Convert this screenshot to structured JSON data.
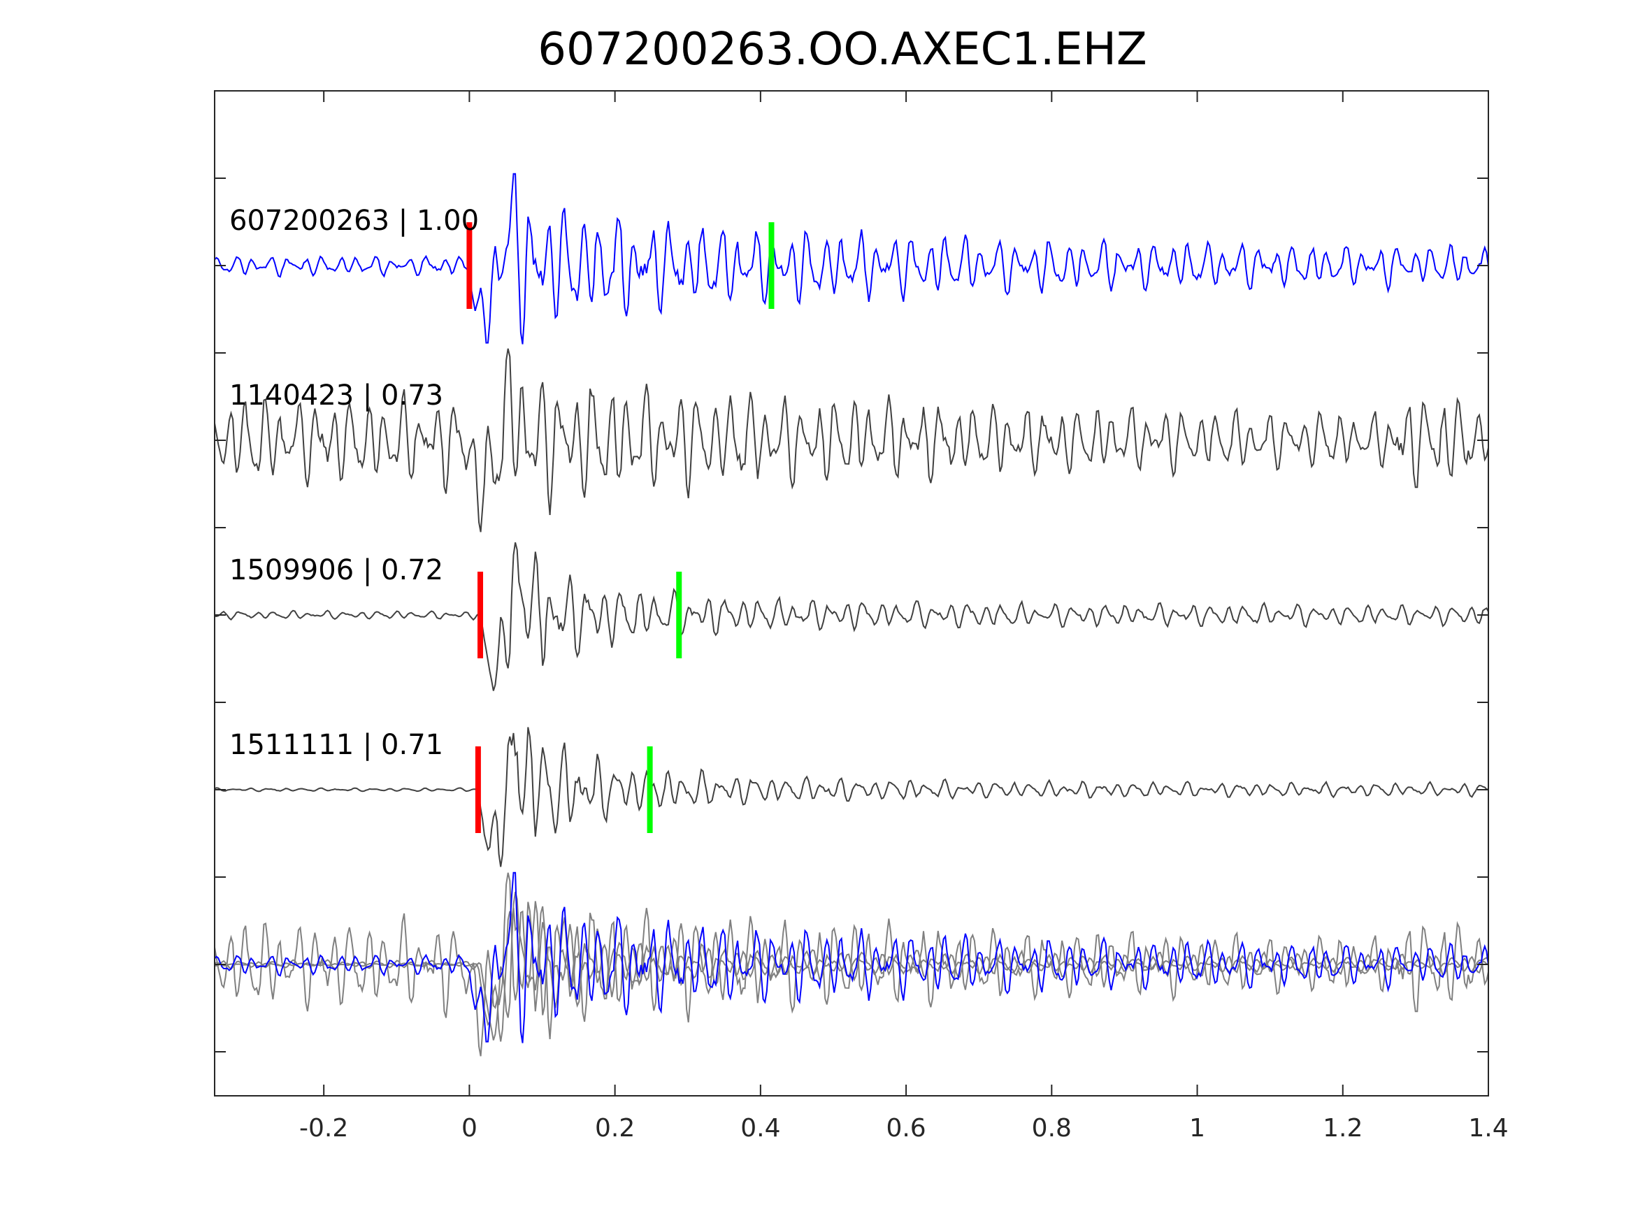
{
  "chart_data": {
    "type": "line",
    "title": "607200263.OO.AXEC1.EHZ",
    "xlabel": "",
    "ylabel": "",
    "xlim": [
      -0.35,
      1.4
    ],
    "x_ticks": [
      -0.2,
      0,
      0.2,
      0.4,
      0.6,
      0.8,
      1,
      1.2,
      1.4
    ],
    "x_tick_labels": [
      "-0.2",
      "0",
      "0.2",
      "0.4",
      "0.6",
      "0.8",
      "1",
      "1.2",
      "1.4"
    ],
    "y_tick_count": 12,
    "y_tick_labels_shown": false,
    "grid": false,
    "colors": {
      "master_trace": "#0000ff",
      "other_trace": "#404040",
      "overlay_trace": "#808080",
      "p_pick": "#ff0000",
      "s_pick": "#00ff00",
      "axes": "#262626"
    },
    "traces": [
      {
        "label": "607200263 | 1.00",
        "event_id": "607200263",
        "correlation": 1.0,
        "p_pick": 0.0,
        "s_pick": 0.415,
        "color": "#0000ff",
        "note_envelope": {
          "pre": 0.12,
          "onset": 0.0,
          "peak": 1.0,
          "coda": 0.55,
          "decay": 2.2,
          "late": 0.22
        }
      },
      {
        "label": "1140423 | 0.73",
        "event_id": "1140423",
        "correlation": 0.73,
        "p_pick": null,
        "s_pick": null,
        "color": "#404040",
        "note_envelope": {
          "pre": 0.55,
          "onset": 0.0,
          "peak": 1.0,
          "coda": 0.55,
          "decay": 1.5,
          "late": 0.25,
          "burst_at": 1.32
        }
      },
      {
        "label": "1509906 | 0.72",
        "event_id": "1509906",
        "correlation": 0.72,
        "p_pick": 0.015,
        "s_pick": 0.288,
        "color": "#404040",
        "note_envelope": {
          "pre": 0.05,
          "onset": 0.015,
          "peak": 1.0,
          "coda": 0.25,
          "decay": 3.0,
          "late": 0.12
        }
      },
      {
        "label": "1511111 | 0.71",
        "event_id": "1511111",
        "correlation": 0.71,
        "p_pick": 0.012,
        "s_pick": 0.248,
        "color": "#404040",
        "note_envelope": {
          "pre": 0.02,
          "onset": 0.012,
          "peak": 1.0,
          "coda": 0.3,
          "decay": 3.5,
          "late": 0.08
        }
      }
    ],
    "overlay": {
      "description_visible": false,
      "traces": [
        "607200263",
        "1140423",
        "1509906",
        "1511111"
      ]
    }
  }
}
